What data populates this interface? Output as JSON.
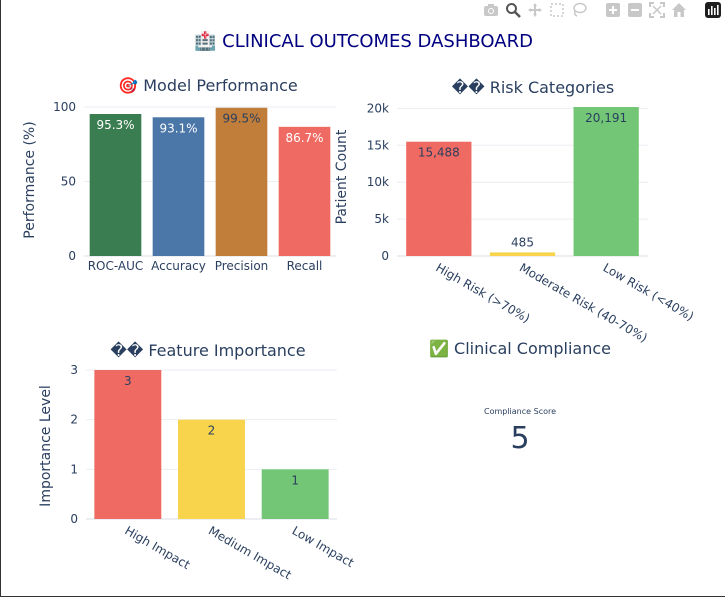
{
  "dashboard_title": "🏥 CLINICAL OUTCOMES DASHBOARD",
  "modebar": [
    "camera-icon",
    "zoom-icon",
    "pan-icon",
    "box-select-icon",
    "lasso-icon",
    "zoom-in-icon",
    "zoom-out-icon",
    "autoscale-icon",
    "reset-axes-icon",
    "plotly-logo-icon"
  ],
  "panels": {
    "model_performance": {
      "title": "🎯 Model Performance"
    },
    "risk_categories": {
      "title": "�� Risk Categories"
    },
    "feature_importance": {
      "title": "�� Feature Importance"
    },
    "clinical_compliance": {
      "title": "✅ Clinical Compliance",
      "indicator_label": "Compliance Score",
      "indicator_value": "5"
    }
  },
  "chart_data": [
    {
      "type": "bar",
      "title": "🎯 Model Performance",
      "categories": [
        "ROC-AUC",
        "Accuracy",
        "Precision",
        "Recall"
      ],
      "values": [
        95.3,
        93.1,
        99.5,
        86.7
      ],
      "labels": [
        "95.3%",
        "93.1%",
        "99.5%",
        "86.7%"
      ],
      "colors": [
        "#3a7d50",
        "#4a76a8",
        "#c07e3a",
        "#ef6a62"
      ],
      "label_colors": [
        "#ffffff",
        "#ffffff",
        "#2a3f5f",
        "#ffffff"
      ],
      "ylabel": "Performance (%)",
      "ylim": [
        0,
        100
      ],
      "yticks": [
        0,
        50,
        100
      ],
      "ytick_labels": [
        "0",
        "50",
        "100"
      ],
      "grid": true
    },
    {
      "type": "bar",
      "title": "�� Risk Categories",
      "categories": [
        "High Risk (>70%)",
        "Moderate Risk (40-70%)",
        "Low Risk (<40%)"
      ],
      "values": [
        15488,
        485,
        20191
      ],
      "labels": [
        "15,488",
        "485",
        "20,191"
      ],
      "colors": [
        "#ef6a62",
        "#f7d44c",
        "#72c676"
      ],
      "ylabel": "Patient Count",
      "ylim": [
        0,
        20191
      ],
      "yticks": [
        0,
        5000,
        10000,
        15000,
        20000
      ],
      "ytick_labels": [
        "0",
        "5k",
        "10k",
        "15k",
        "20k"
      ],
      "grid": true
    },
    {
      "type": "bar",
      "title": "�� Feature Importance",
      "categories": [
        "High Impact",
        "Medium Impact",
        "Low Impact"
      ],
      "values": [
        3,
        2,
        1
      ],
      "labels": [
        "3",
        "2",
        "1"
      ],
      "colors": [
        "#ef6a62",
        "#f7d44c",
        "#72c676"
      ],
      "ylabel": "Importance Level",
      "ylim": [
        0,
        3
      ],
      "yticks": [
        0,
        1,
        2,
        3
      ],
      "ytick_labels": [
        "0",
        "1",
        "2",
        "3"
      ],
      "grid": true
    },
    {
      "type": "indicator",
      "title": "✅ Clinical Compliance",
      "label": "Compliance Score",
      "value": 5
    }
  ]
}
